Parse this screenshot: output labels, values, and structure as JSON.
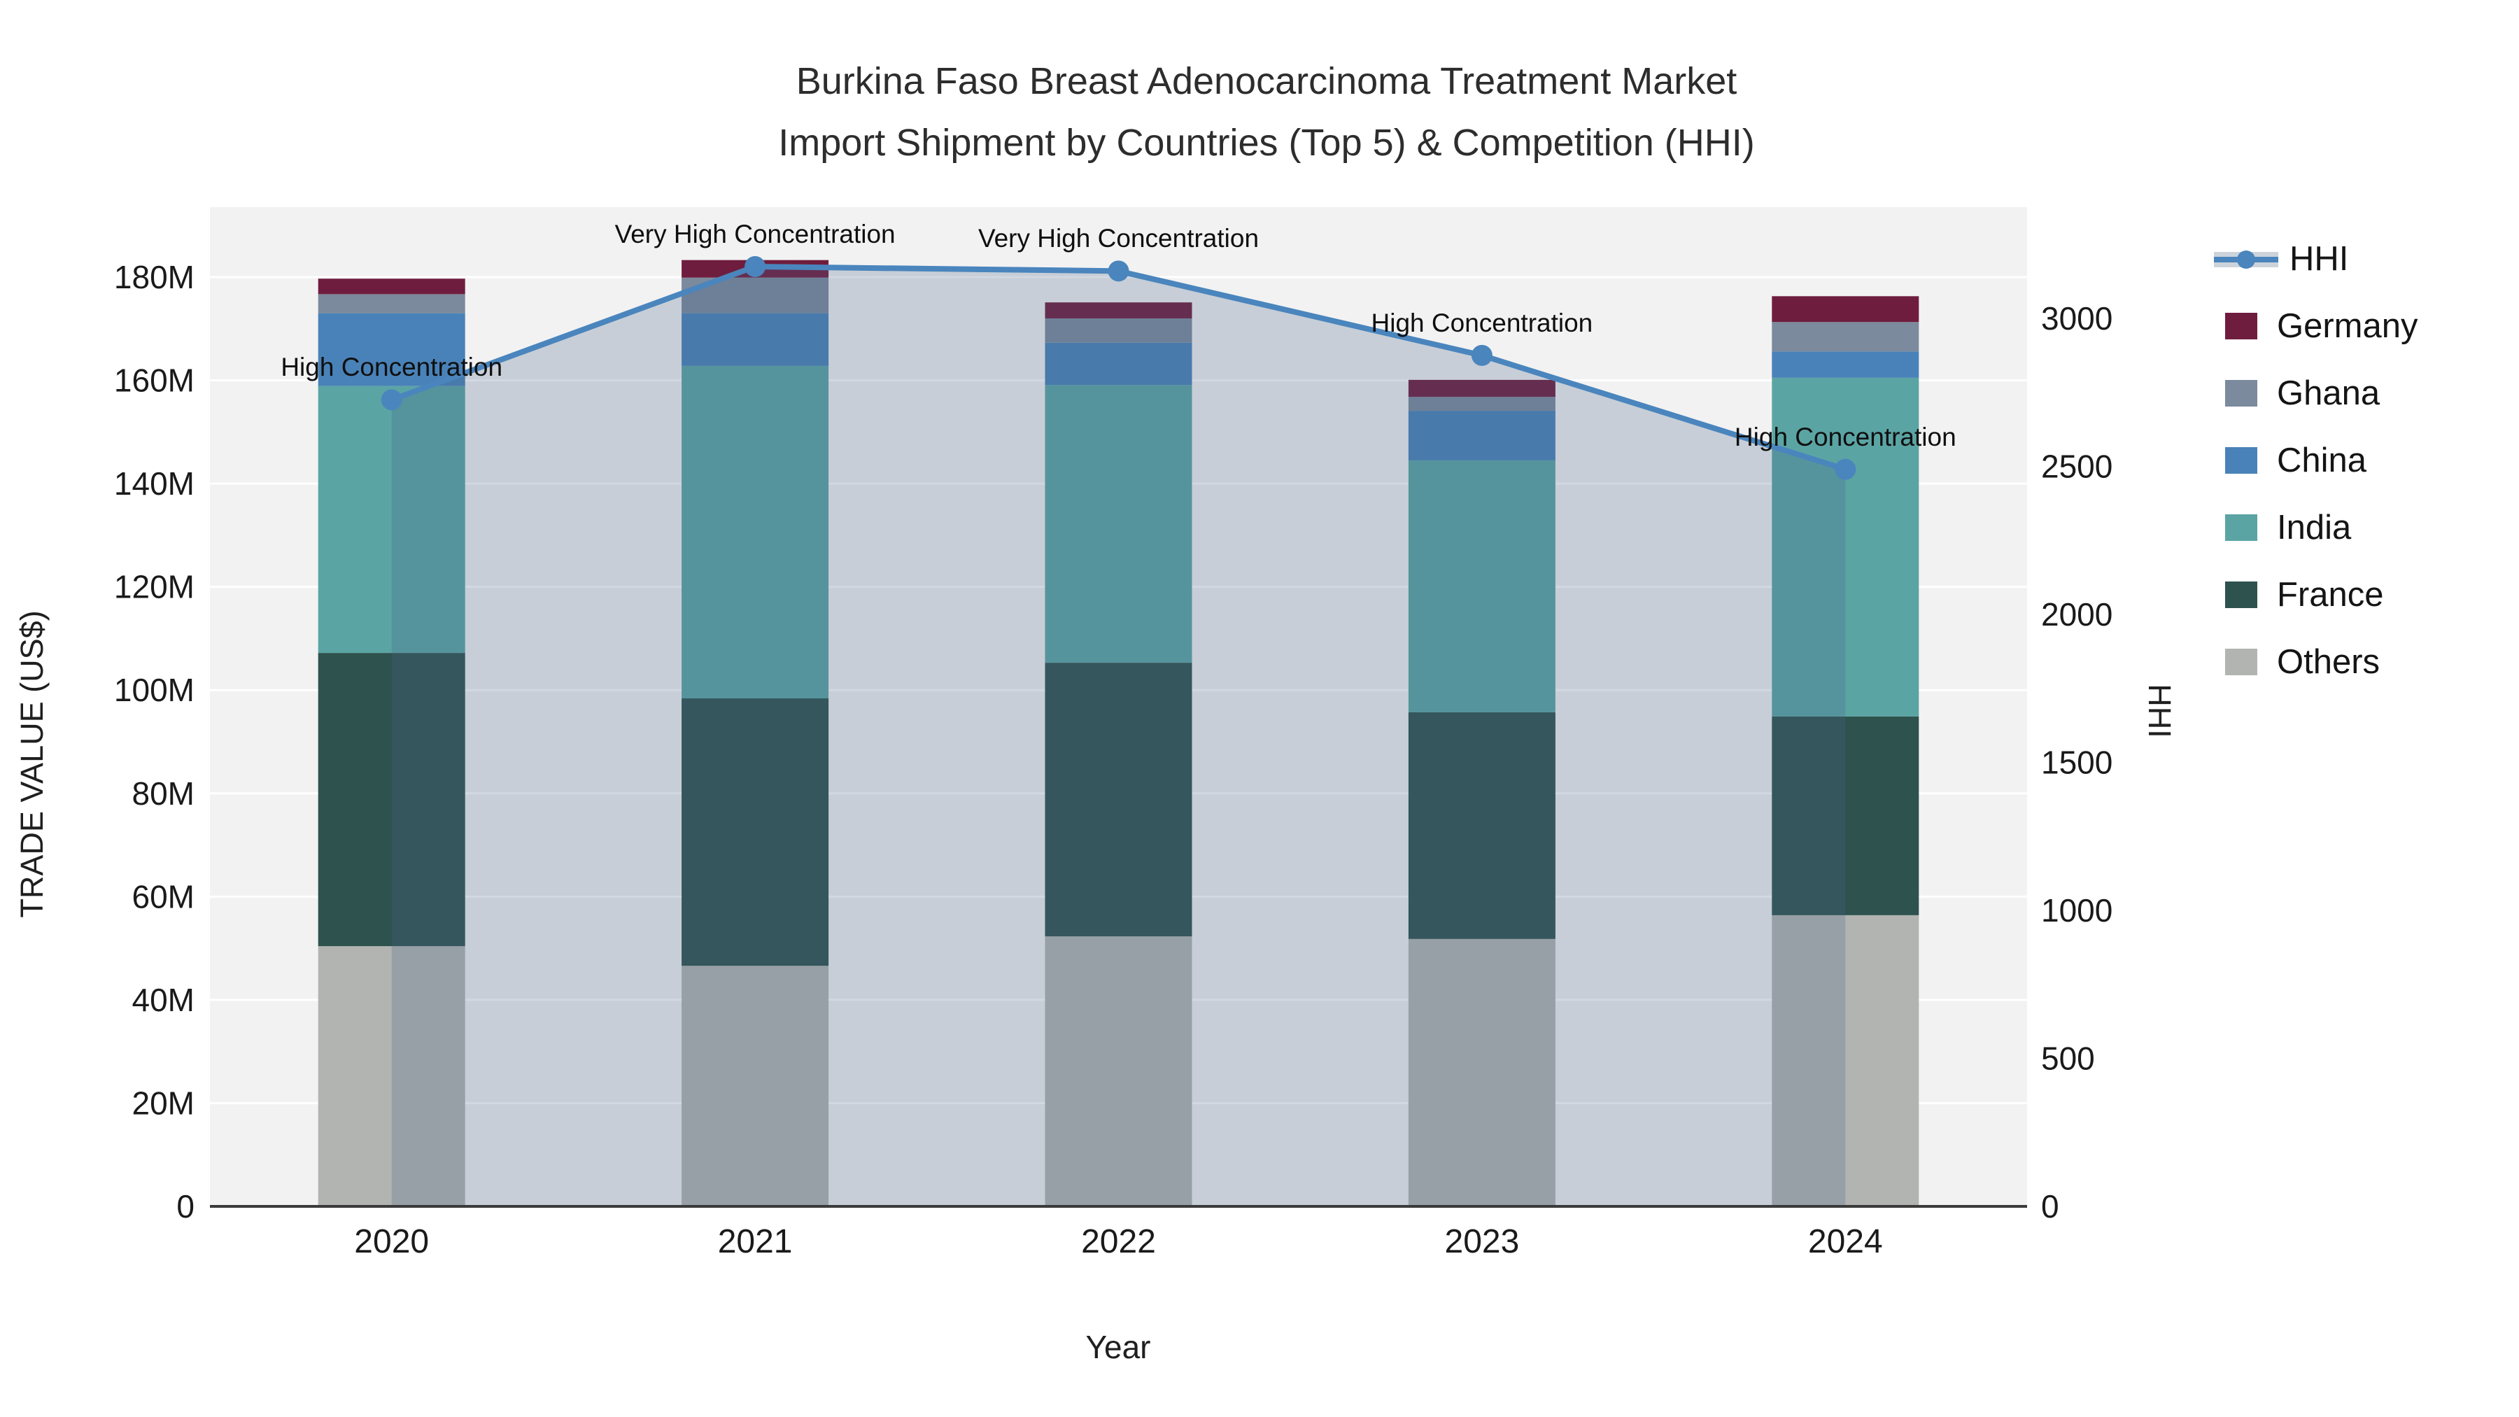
{
  "title": {
    "line1": "Burkina Faso Breast Adenocarcinoma Treatment Market",
    "line2": "Import Shipment by Countries (Top 5) & Competition (HHI)"
  },
  "axes": {
    "x": {
      "title": "Year",
      "categories": [
        "2020",
        "2021",
        "2022",
        "2023",
        "2024"
      ]
    },
    "y_left": {
      "title": "TRADE VALUE (US$)",
      "tick_labels": [
        "0",
        "20M",
        "40M",
        "60M",
        "80M",
        "100M",
        "120M",
        "140M",
        "160M",
        "180M"
      ],
      "tick_values_musd": [
        0,
        20,
        40,
        60,
        80,
        100,
        120,
        140,
        160,
        180
      ]
    },
    "y_right": {
      "title": "HHI",
      "tick_labels": [
        "0",
        "500",
        "1000",
        "1500",
        "2000",
        "2500",
        "3000"
      ],
      "tick_values": [
        0,
        500,
        1000,
        1500,
        2000,
        2500,
        3000
      ]
    }
  },
  "legend": {
    "items": [
      {
        "label": "HHI",
        "type": "line",
        "color": "#4a85bd"
      },
      {
        "label": "Germany",
        "type": "square",
        "color": "#6f1d3e"
      },
      {
        "label": "Ghana",
        "type": "square",
        "color": "#7b8a9c"
      },
      {
        "label": "China",
        "type": "square",
        "color": "#4982b8"
      },
      {
        "label": "India",
        "type": "square",
        "color": "#5ba4a4"
      },
      {
        "label": "France",
        "type": "square",
        "color": "#2e524e"
      },
      {
        "label": "Others",
        "type": "square",
        "color": "#b2b4b1"
      }
    ]
  },
  "chart_data": {
    "type": "bar",
    "subtype": "stacked-bars-with-line-overlay",
    "categories": [
      "2020",
      "2021",
      "2022",
      "2023",
      "2024"
    ],
    "bar_value_unit": "US$ millions",
    "series": [
      {
        "name": "Others",
        "color": "#b2b4b1",
        "values": [
          50.4,
          46.6,
          52.3,
          51.8,
          56.4
        ]
      },
      {
        "name": "France",
        "color": "#2e524e",
        "values": [
          56.8,
          51.8,
          53.0,
          43.9,
          38.5
        ]
      },
      {
        "name": "India",
        "color": "#5ba4a4",
        "values": [
          51.7,
          64.4,
          53.8,
          48.8,
          65.6
        ]
      },
      {
        "name": "China",
        "color": "#4982b8",
        "values": [
          14.1,
          10.2,
          8.2,
          9.6,
          5.1
        ]
      },
      {
        "name": "Ghana",
        "color": "#7b8a9c",
        "values": [
          3.7,
          6.9,
          4.7,
          2.7,
          5.7
        ]
      },
      {
        "name": "Germany",
        "color": "#6f1d3e",
        "values": [
          3.0,
          3.4,
          3.1,
          3.3,
          5.0
        ]
      }
    ],
    "bar_totals_musd": [
      179.7,
      183.3,
      175.1,
      160.1,
      176.3
    ],
    "line": {
      "name": "HHI",
      "axis": "right",
      "color": "#4a85bd",
      "area_fill": "rgba(72,98,134,0.25)",
      "values": [
        2725,
        3175,
        3160,
        2875,
        2490
      ]
    },
    "annotations": [
      {
        "x": "2020",
        "text": "High Concentration"
      },
      {
        "x": "2021",
        "text": "Very High Concentration"
      },
      {
        "x": "2022",
        "text": "Very High Concentration"
      },
      {
        "x": "2023",
        "text": "High Concentration"
      },
      {
        "x": "2024",
        "text": "High Concentration"
      }
    ],
    "ylim_left_musd": [
      0,
      193.5
    ],
    "ylim_right": [
      0,
      3376
    ],
    "grid": {
      "horizontal": true,
      "color": "#ffffff",
      "at_left_ticks_musd": [
        20,
        40,
        60,
        80,
        100,
        120,
        140,
        160,
        180
      ]
    },
    "plot_background": "#f2f2f2",
    "legend_position": "right"
  }
}
